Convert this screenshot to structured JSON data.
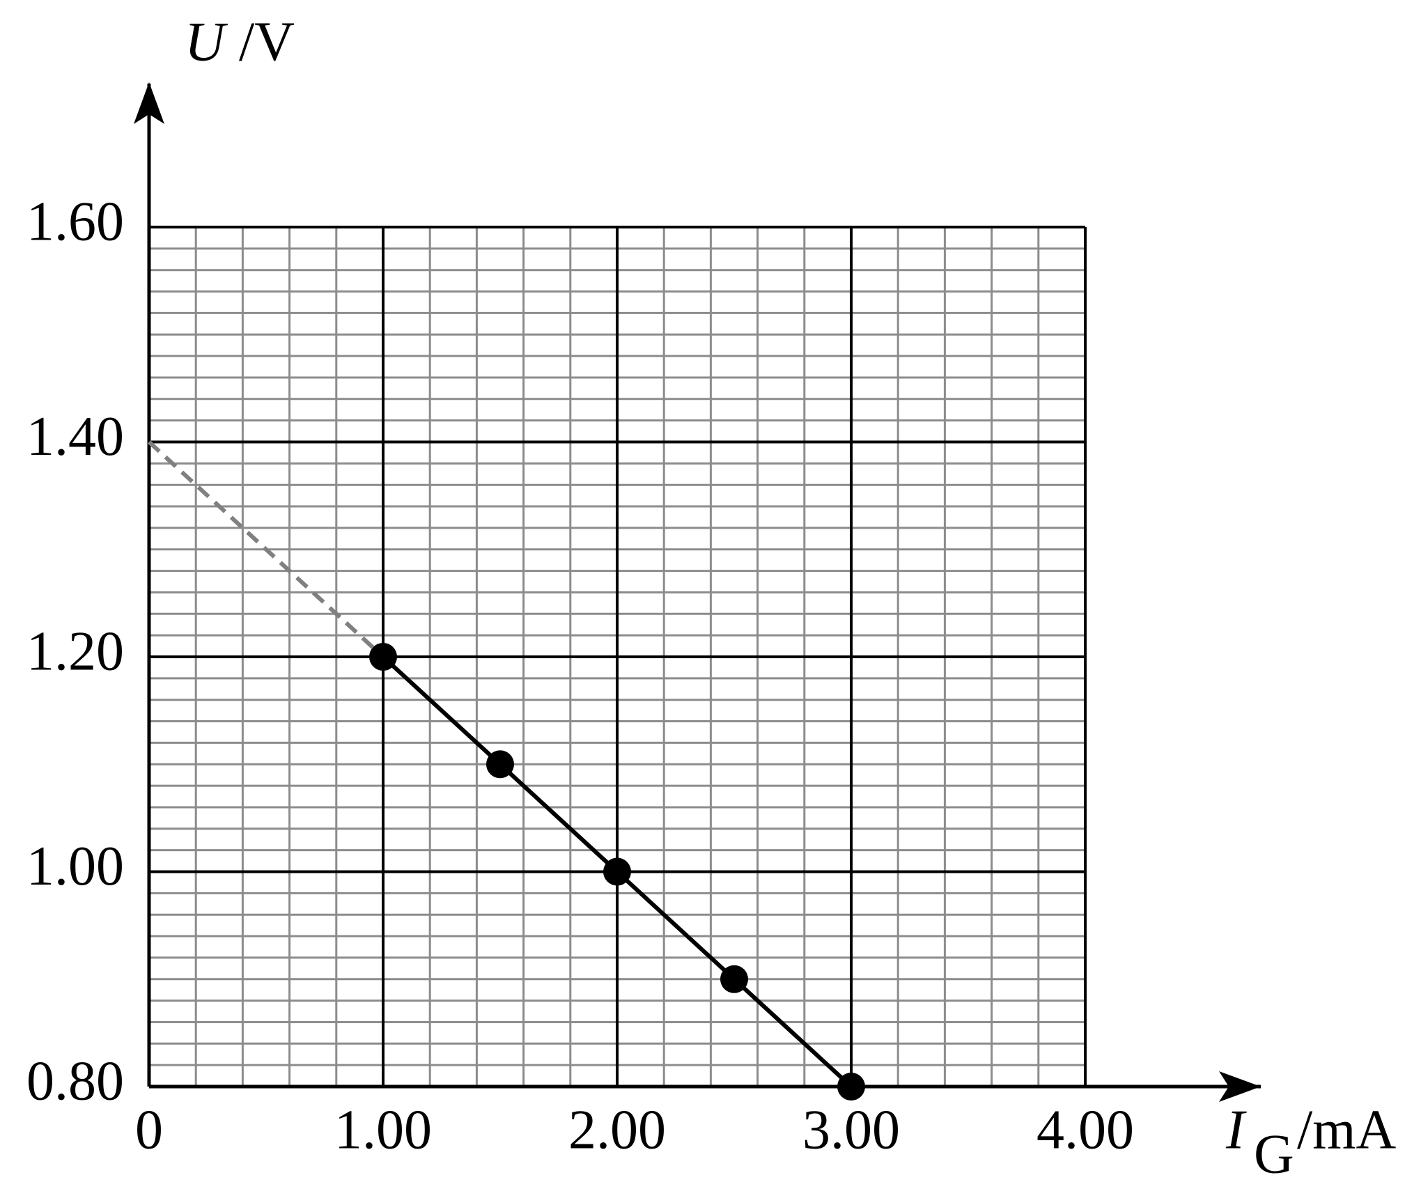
{
  "chart_data": {
    "type": "line",
    "ylabel_symbol": "U",
    "ylabel_unit": "/V",
    "xlabel_symbol": "I",
    "xlabel_subscript": "G",
    "xlabel_unit": "/mA",
    "xlim": [
      0,
      4
    ],
    "ylim": [
      0.8,
      1.6
    ],
    "xticks": [
      0,
      {
        "value": 1,
        "label": "1.00"
      },
      {
        "value": 2,
        "label": "2.00"
      },
      {
        "value": 3,
        "label": "3.00"
      },
      {
        "value": 4,
        "label": "4.00"
      }
    ],
    "yticks": [
      {
        "value": 0.8,
        "label": "0.80"
      },
      {
        "value": 1.0,
        "label": "1.00"
      },
      {
        "value": 1.2,
        "label": "1.20"
      },
      {
        "value": 1.4,
        "label": "1.40"
      },
      {
        "value": 1.6,
        "label": "1.60"
      }
    ],
    "grid": true,
    "minor_grid": {
      "x_step": 0.2,
      "y_step": 0.02
    },
    "series": [
      {
        "color": "#000000",
        "dashed": false,
        "markers": true,
        "x": [
          1.0,
          1.5,
          2.0,
          2.5,
          3.0
        ],
        "values": [
          1.2,
          1.1,
          1.0,
          0.9,
          0.8
        ]
      },
      {
        "color": "#808080",
        "dashed": true,
        "markers": false,
        "x": [
          0,
          1.0
        ],
        "values": [
          1.4,
          1.2
        ]
      }
    ]
  }
}
